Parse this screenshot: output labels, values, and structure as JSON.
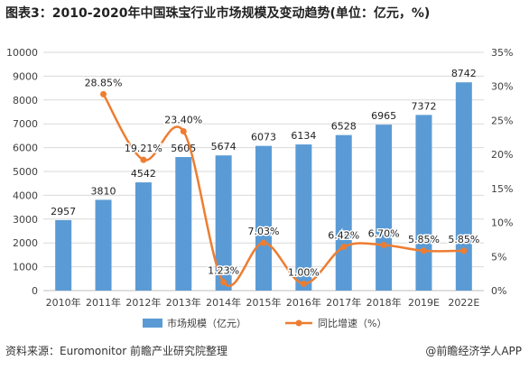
{
  "title": "图表3：2010-2020年中国珠宝行业市场规模及变动趋势(单位：亿元，%)",
  "source": "资料来源：Euromonitor 前瞻产业研究院整理",
  "brand": "@前瞻经济学人APP",
  "colors": {
    "bar": "#5b9bd5",
    "line": "#ed7d31",
    "grid": "#d9d9d9",
    "axis": "#bfbfbf"
  },
  "chart_data": {
    "type": "bar",
    "categories": [
      "2010年",
      "2011年",
      "2012年",
      "2013年",
      "2014年",
      "2015年",
      "2016年",
      "2017年",
      "2018年",
      "2019E",
      "2022E"
    ],
    "series": [
      {
        "name": "市场规模（亿元）",
        "type": "bar",
        "axis": "left",
        "values": [
          2957,
          3810,
          4542,
          5605,
          5674,
          6073,
          6134,
          6528,
          6965,
          7372,
          8742
        ],
        "labels": [
          "2957",
          "3810",
          "4542",
          "5605",
          "5674",
          "6073",
          "6134",
          "6528",
          "6965",
          "7372",
          "8742"
        ]
      },
      {
        "name": "同比增速（%）",
        "type": "line",
        "axis": "right",
        "values": [
          null,
          28.85,
          19.21,
          23.4,
          1.23,
          7.03,
          1.0,
          6.42,
          6.7,
          5.85,
          5.85
        ],
        "labels": [
          "",
          "28.85%",
          "19.21%",
          "23.40%",
          "1.23%",
          "7.03%",
          "1.00%",
          "6.42%",
          "6.70%",
          "5.85%",
          "5.85%"
        ]
      }
    ],
    "y_left": {
      "min": 0,
      "max": 10000,
      "ticks": [
        "0",
        "1000",
        "2000",
        "3000",
        "4000",
        "5000",
        "6000",
        "7000",
        "8000",
        "9000",
        "10000"
      ]
    },
    "y_right": {
      "min": 0,
      "max": 35,
      "ticks": [
        "0%",
        "5%",
        "10%",
        "15%",
        "20%",
        "25%",
        "30%",
        "35%"
      ]
    },
    "grid": true,
    "legend": "bottom"
  }
}
